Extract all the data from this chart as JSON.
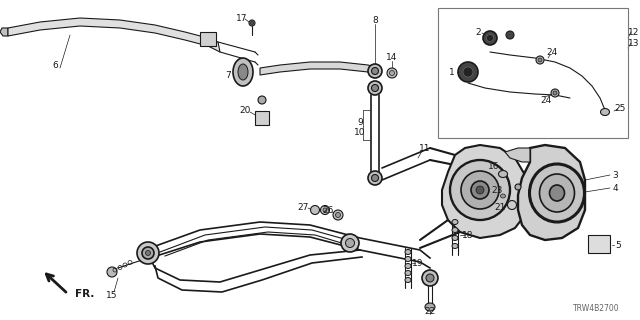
{
  "bg_color": "#ffffff",
  "diagram_color": "#1a1a1a",
  "watermark": "TRW4B2700",
  "fig_width": 6.4,
  "fig_height": 3.2,
  "dpi": 100
}
